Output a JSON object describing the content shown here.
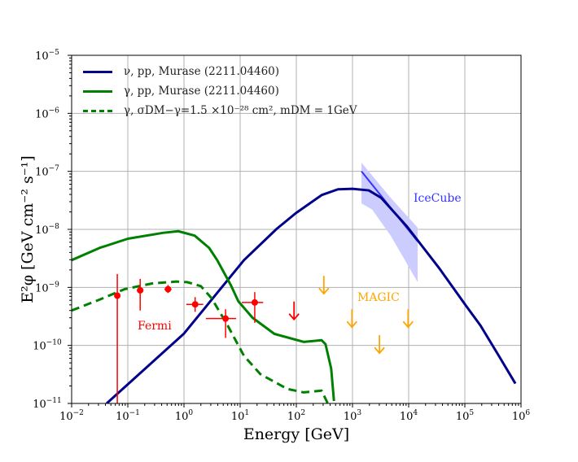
{
  "chart_data": {
    "type": "line",
    "xlabel": "Energy [GeV]",
    "ylabel": "E²φ [GeV cm⁻² s⁻¹]",
    "xscale": "log",
    "yscale": "log",
    "xlim": [
      0.01,
      1000000
    ],
    "ylim": [
      1e-11,
      1e-05
    ],
    "grid": true,
    "legend_position": "top-left",
    "x_tick_exponents": [
      "-2",
      "-1",
      "0",
      "1",
      "2",
      "3",
      "4",
      "5",
      "6"
    ],
    "y_tick_exponents": [
      "-11",
      "-10",
      "-9",
      "-8",
      "-7",
      "-6",
      "-5"
    ],
    "tick_base": "10",
    "series": [
      {
        "name": "ν, pp, Murase (2211.04460)",
        "color": "#00008b",
        "style": "solid",
        "x": [
          0.042,
          1.0,
          11.7,
          44.7,
          97.7,
          282,
          550,
          1000,
          1950,
          3240,
          9330,
          35500,
          107000,
          190000,
          407000,
          794000
        ],
        "y": [
          1e-11,
          1.6e-10,
          2.95e-09,
          1.02e-08,
          1.9e-08,
          3.9e-08,
          4.9e-08,
          5e-08,
          4.7e-08,
          3.5e-08,
          1.12e-08,
          2.1e-09,
          4.7e-10,
          2.2e-10,
          6.5e-11,
          2.2e-11
        ]
      },
      {
        "name": "γ, pp, Murase (2211.04460)",
        "color": "#008000",
        "style": "solid",
        "x": [
          0.01,
          0.0316,
          0.1,
          0.42,
          0.79,
          1.55,
          2.8,
          3.9,
          6.8,
          9.3,
          16.6,
          40.7,
          135,
          282,
          331,
          417,
          468
        ],
        "y": [
          2.95e-09,
          4.8e-09,
          6.9e-09,
          8.7e-09,
          9.3e-09,
          7.8e-09,
          4.8e-09,
          2.95e-09,
          1.1e-09,
          5.75e-10,
          3e-10,
          1.58e-10,
          1.15e-10,
          1.23e-10,
          1.05e-10,
          4e-11,
          1.1e-11
        ]
      },
      {
        "name": "γ, σDM−γ=1.5 ×10⁻²⁸ cm², mDM = 1GeV",
        "color": "#008000",
        "style": "dashed",
        "x": [
          0.01,
          0.032,
          0.087,
          0.27,
          0.74,
          1.15,
          2.0,
          3.1,
          6.0,
          11.7,
          22.9,
          69,
          135,
          282,
          372
        ],
        "y": [
          4e-10,
          6.2e-10,
          9.3e-10,
          1.17e-09,
          1.26e-09,
          1.23e-09,
          1.05e-09,
          6.5e-10,
          2.2e-10,
          6.6e-11,
          3.2e-11,
          1.78e-11,
          1.55e-11,
          1.66e-11,
          9.5e-12
        ]
      }
    ],
    "fermi": {
      "label": "Fermi",
      "color": "#ff0000",
      "points": [
        {
          "x": 0.065,
          "y": 7.2e-10,
          "xerr": [
            0.065,
            0.065
          ],
          "yerr": [
            1e-11,
            1.7e-09
          ]
        },
        {
          "x": 0.166,
          "y": 8.9e-10,
          "xerr": [
            0.145,
            0.19
          ],
          "yerr": [
            4e-10,
            1.4e-09
          ]
        },
        {
          "x": 0.52,
          "y": 9.3e-10,
          "xerr": [
            0.45,
            0.6
          ],
          "yerr": [
            8e-10,
            1.1e-09
          ]
        },
        {
          "x": 1.58,
          "y": 5.1e-10,
          "xerr": [
            1.1,
            2.2
          ],
          "yerr": [
            3.8e-10,
            6.8e-10
          ]
        },
        {
          "x": 5.5,
          "y": 2.9e-10,
          "xerr": [
            2.45,
            8.5
          ],
          "yerr": [
            1.35e-10,
            4.2e-10
          ]
        },
        {
          "x": 18.2,
          "y": 5.5e-10,
          "xerr": [
            10.7,
            25.7
          ],
          "yerr": [
            2.45e-10,
            8.3e-10
          ]
        }
      ],
      "upper_limits": [
        {
          "x": 91,
          "y": 5.7e-10
        }
      ]
    },
    "magic": {
      "label": "MAGIC",
      "color": "#ffa500",
      "upper_limits": [
        {
          "x": 309,
          "y": 1.58e-09
        },
        {
          "x": 977,
          "y": 4.2e-10
        },
        {
          "x": 3020,
          "y": 1.5e-10
        },
        {
          "x": 9770,
          "y": 4.2e-10
        }
      ]
    },
    "icecube": {
      "label": "IceCube",
      "color": "#3333ff",
      "band_color": "#ccccff",
      "band_upper": {
        "x": [
          1445,
          4790,
          14450
        ],
        "y": [
          1.41e-07,
          3.5e-08,
          1.07e-08
        ]
      },
      "band_lower": {
        "x": [
          1445,
          2240,
          4790,
          14450
        ],
        "y": [
          2.8e-08,
          2.2e-08,
          7.8e-09,
          1.23e-09
        ]
      },
      "line": {
        "x": [
          1445,
          14450
        ],
        "y": [
          1e-07,
          6.2e-09
        ]
      }
    }
  }
}
